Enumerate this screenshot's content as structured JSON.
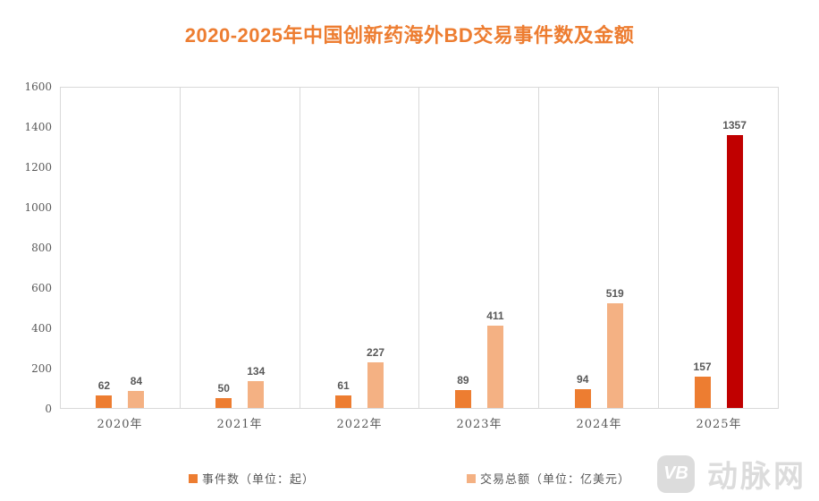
{
  "chart_data": {
    "type": "bar",
    "title": "2020-2025年中国创新药海外BD交易事件数及金额",
    "categories": [
      "2020年",
      "2021年",
      "2022年",
      "2023年",
      "2024年",
      "2025年"
    ],
    "series": [
      {
        "name": "事件数（单位：起）",
        "color": "#ED7D31",
        "values": [
          62,
          50,
          61,
          89,
          94,
          157
        ],
        "bar_colors": [
          "#ED7D31",
          "#ED7D31",
          "#ED7D31",
          "#ED7D31",
          "#ED7D31",
          "#ED7D31"
        ]
      },
      {
        "name": "交易总额（单位：亿美元）",
        "color": "#F4B183",
        "values": [
          84,
          134,
          227,
          411,
          519,
          1357
        ],
        "bar_colors": [
          "#F4B183",
          "#F4B183",
          "#F4B183",
          "#F4B183",
          "#F4B183",
          "#C00000"
        ]
      }
    ],
    "xlabel": "",
    "ylabel": "",
    "ylim": [
      0,
      1600
    ],
    "yticks": [
      0,
      200,
      400,
      600,
      800,
      1000,
      1200,
      1400,
      1600
    ],
    "grid": "vertical category separators only",
    "legend_position": "bottom",
    "highlight": {
      "series": "交易总额（单位：亿美元）",
      "category": "2025年",
      "color": "#C00000"
    },
    "colors": {
      "title": "#ED7D31",
      "axis_line": "#D9D9D9",
      "tick_text": "#595959",
      "data_label_text": "#595959"
    }
  },
  "watermark": {
    "logo": "VB",
    "text": "动脉网"
  }
}
